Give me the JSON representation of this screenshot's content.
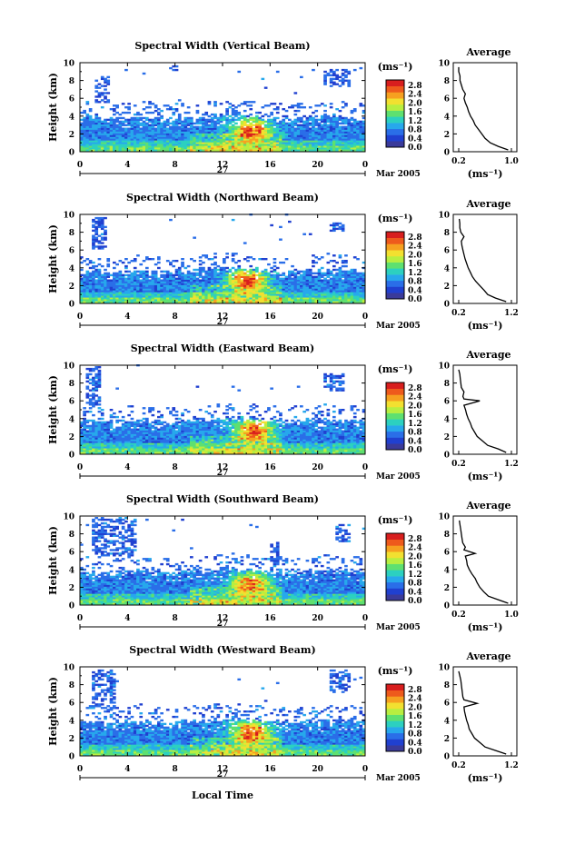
{
  "figure": {
    "date_label": "Mar 2005",
    "day_label": "27",
    "xlabel_bottom": "Local Time",
    "colorbar_unit": "(ms⁻¹)",
    "average_title": "Average",
    "average_xlabel": "(ms⁻¹)"
  },
  "colorbar": {
    "ticks": [
      "0.0",
      "0.4",
      "0.8",
      "1.2",
      "1.6",
      "2.0",
      "2.4",
      "2.8"
    ],
    "colors": [
      "#3a3a9a",
      "#2040d0",
      "#2a6ee8",
      "#27a8ec",
      "#2cd0c0",
      "#5ee070",
      "#b8ee40",
      "#f2e030",
      "#f6a020",
      "#ee5a1c",
      "#d81e1e"
    ]
  },
  "chart_data": [
    {
      "type": "heatmap",
      "title": "Spectral Width (Vertical Beam)",
      "ylabel": "Height (km)",
      "x_ticks": [
        "0",
        "4",
        "8",
        "12",
        "16",
        "20",
        "0"
      ],
      "y_ticks": [
        "0",
        "2",
        "4",
        "6",
        "8",
        "10"
      ],
      "xlim": [
        0,
        24
      ],
      "ylim": [
        0,
        10
      ],
      "clim": [
        0.0,
        2.8
      ],
      "cloud_top_km": [
        3.8,
        3.7,
        3.5,
        3.6,
        3.9,
        3.8,
        3.6,
        3.5,
        3.7,
        3.6,
        3.8,
        4.0,
        4.1,
        3.9,
        3.8,
        3.7,
        3.6,
        3.5,
        3.6,
        3.7,
        3.8,
        3.9,
        3.8,
        3.7
      ],
      "upper_features": [
        {
          "t0": 1.2,
          "t1": 2.3,
          "h0": 5.5,
          "h1": 8.5
        },
        {
          "t0": 20.5,
          "t1": 22.5,
          "h0": 7.3,
          "h1": 9.2
        },
        {
          "t0": 7.5,
          "t1": 8.0,
          "h0": 9.0,
          "h1": 9.6
        }
      ],
      "peak": {
        "t": 14.3,
        "h": 2.4,
        "value": 2.6
      },
      "average_profile": {
        "xlim": [
          0.2,
          1.0
        ],
        "x_ticks": [
          "0.2",
          "1.0"
        ],
        "y_ticks": [
          "0",
          "2",
          "4",
          "6",
          "8",
          "10"
        ],
        "height_km": [
          0.2,
          0.6,
          1.0,
          1.5,
          2.0,
          2.5,
          3.0,
          3.5,
          4.0,
          4.5,
          5.0,
          5.5,
          6.0,
          6.5,
          7.0,
          7.5,
          8.0,
          8.5,
          9.0,
          9.5
        ],
        "value": [
          0.95,
          0.8,
          0.68,
          0.6,
          0.55,
          0.5,
          0.45,
          0.42,
          0.38,
          0.35,
          0.33,
          0.3,
          0.28,
          0.3,
          0.26,
          0.24,
          0.22,
          0.22,
          0.2,
          0.2
        ]
      }
    },
    {
      "type": "heatmap",
      "title": "Spectral Width (Northward Beam)",
      "ylabel": "Height (km)",
      "x_ticks": [
        "0",
        "4",
        "8",
        "12",
        "16",
        "20",
        "0"
      ],
      "y_ticks": [
        "0",
        "2",
        "4",
        "6",
        "8",
        "10"
      ],
      "xlim": [
        0,
        24
      ],
      "ylim": [
        0,
        10
      ],
      "clim": [
        0.0,
        2.8
      ],
      "cloud_top_km": [
        3.6,
        3.5,
        3.3,
        3.4,
        3.6,
        3.5,
        3.4,
        3.3,
        3.5,
        3.6,
        3.7,
        3.8,
        3.9,
        3.8,
        3.7,
        3.6,
        3.5,
        3.4,
        3.5,
        3.6,
        3.7,
        3.7,
        3.6,
        3.5
      ],
      "upper_features": [
        {
          "t0": 1.0,
          "t1": 2.0,
          "h0": 6.0,
          "h1": 9.5
        },
        {
          "t0": 21.0,
          "t1": 22.0,
          "h0": 8.0,
          "h1": 9.0
        }
      ],
      "peak": {
        "t": 14.0,
        "h": 2.5,
        "value": 2.7
      },
      "average_profile": {
        "xlim": [
          0.2,
          1.2
        ],
        "x_ticks": [
          "0.2",
          "1.2"
        ],
        "y_ticks": [
          "0",
          "2",
          "4",
          "6",
          "8",
          "10"
        ],
        "height_km": [
          0.2,
          0.6,
          1.0,
          1.5,
          2.0,
          2.5,
          3.0,
          3.5,
          4.0,
          4.5,
          5.0,
          5.5,
          6.0,
          6.5,
          7.0,
          7.5,
          8.0,
          8.5,
          9.0,
          9.5
        ],
        "value": [
          1.1,
          0.9,
          0.75,
          0.68,
          0.6,
          0.52,
          0.46,
          0.42,
          0.38,
          0.35,
          0.32,
          0.3,
          0.28,
          0.26,
          0.25,
          0.3,
          0.24,
          0.22,
          0.22,
          0.21
        ]
      }
    },
    {
      "type": "heatmap",
      "title": "Spectral Width (Eastward Beam)",
      "ylabel": "Height (km)",
      "x_ticks": [
        "0",
        "4",
        "8",
        "12",
        "16",
        "20",
        "0"
      ],
      "y_ticks": [
        "0",
        "2",
        "4",
        "6",
        "8",
        "10"
      ],
      "xlim": [
        0,
        24
      ],
      "ylim": [
        0,
        10
      ],
      "clim": [
        0.0,
        2.8
      ],
      "cloud_top_km": [
        3.7,
        3.6,
        3.4,
        3.5,
        3.7,
        3.6,
        3.5,
        3.4,
        3.6,
        3.7,
        3.8,
        3.9,
        4.0,
        3.9,
        3.8,
        3.7,
        3.6,
        3.5,
        3.6,
        3.7,
        3.8,
        3.8,
        3.7,
        3.6
      ],
      "upper_features": [
        {
          "t0": 0.5,
          "t1": 1.5,
          "h0": 5.5,
          "h1": 9.8
        },
        {
          "t0": 20.5,
          "t1": 22.2,
          "h0": 7.0,
          "h1": 9.0
        }
      ],
      "peak": {
        "t": 14.5,
        "h": 2.6,
        "value": 2.7
      },
      "average_profile": {
        "xlim": [
          0.2,
          1.2
        ],
        "x_ticks": [
          "0.2",
          "1.2"
        ],
        "y_ticks": [
          "0",
          "2",
          "4",
          "6",
          "8",
          "10"
        ],
        "height_km": [
          0.2,
          0.6,
          1.0,
          1.5,
          2.0,
          2.5,
          3.0,
          3.5,
          4.0,
          4.5,
          5.0,
          5.5,
          6.0,
          6.2,
          6.5,
          7.0,
          7.5,
          8.0,
          8.5,
          9.0,
          9.5
        ],
        "value": [
          1.1,
          0.95,
          0.75,
          0.65,
          0.55,
          0.5,
          0.45,
          0.42,
          0.38,
          0.35,
          0.33,
          0.3,
          0.6,
          0.3,
          0.28,
          0.3,
          0.25,
          0.24,
          0.23,
          0.22,
          0.2
        ]
      }
    },
    {
      "type": "heatmap",
      "title": "Spectral Width (Southward Beam)",
      "ylabel": "Height (km)",
      "x_ticks": [
        "0",
        "4",
        "8",
        "12",
        "16",
        "20",
        "0"
      ],
      "y_ticks": [
        "0",
        "2",
        "4",
        "6",
        "8",
        "10"
      ],
      "xlim": [
        0,
        24
      ],
      "ylim": [
        0,
        10
      ],
      "clim": [
        0.0,
        2.8
      ],
      "cloud_top_km": [
        3.7,
        3.6,
        3.4,
        3.5,
        3.6,
        3.7,
        3.5,
        3.4,
        3.6,
        3.7,
        3.8,
        3.9,
        4.0,
        3.9,
        3.8,
        3.7,
        3.6,
        3.5,
        3.6,
        3.7,
        3.8,
        3.8,
        3.7,
        3.6
      ],
      "upper_features": [
        {
          "t0": 0.8,
          "t1": 4.5,
          "h0": 5.5,
          "h1": 9.8
        },
        {
          "t0": 21.5,
          "t1": 22.5,
          "h0": 6.8,
          "h1": 9.0
        },
        {
          "t0": 16.0,
          "t1": 16.6,
          "h0": 4.0,
          "h1": 7.0
        }
      ],
      "peak": {
        "t": 14.2,
        "h": 2.3,
        "value": 2.5
      },
      "average_profile": {
        "xlim": [
          0.2,
          1.0
        ],
        "x_ticks": [
          "0.2",
          "1.0"
        ],
        "y_ticks": [
          "0",
          "2",
          "4",
          "6",
          "8",
          "10"
        ],
        "height_km": [
          0.2,
          0.6,
          1.0,
          1.5,
          2.0,
          2.5,
          3.0,
          3.5,
          4.0,
          4.5,
          5.0,
          5.5,
          5.8,
          6.2,
          6.5,
          7.0,
          7.5,
          8.0,
          8.5,
          9.0,
          9.5
        ],
        "value": [
          0.95,
          0.8,
          0.65,
          0.58,
          0.52,
          0.48,
          0.45,
          0.4,
          0.36,
          0.33,
          0.32,
          0.3,
          0.45,
          0.28,
          0.3,
          0.26,
          0.25,
          0.24,
          0.23,
          0.22,
          0.21
        ]
      }
    },
    {
      "type": "heatmap",
      "title": "Spectral Width (Westward Beam)",
      "ylabel": "Height (km)",
      "x_ticks": [
        "0",
        "4",
        "8",
        "12",
        "16",
        "20",
        "0"
      ],
      "y_ticks": [
        "0",
        "2",
        "4",
        "6",
        "8",
        "10"
      ],
      "xlim": [
        0,
        24
      ],
      "ylim": [
        0,
        10
      ],
      "clim": [
        0.0,
        2.8
      ],
      "cloud_top_km": [
        3.8,
        3.7,
        3.5,
        3.6,
        3.7,
        3.8,
        3.6,
        3.5,
        3.7,
        3.8,
        3.9,
        4.0,
        4.1,
        4.0,
        3.9,
        3.8,
        3.7,
        3.6,
        3.7,
        3.8,
        3.9,
        3.9,
        3.8,
        3.7
      ],
      "upper_features": [
        {
          "t0": 0.8,
          "t1": 2.8,
          "h0": 5.0,
          "h1": 9.6
        },
        {
          "t0": 21.0,
          "t1": 22.5,
          "h0": 7.0,
          "h1": 9.5
        }
      ],
      "peak": {
        "t": 14.3,
        "h": 2.6,
        "value": 2.7
      },
      "average_profile": {
        "xlim": [
          0.2,
          1.2
        ],
        "x_ticks": [
          "0.2",
          "1.2"
        ],
        "y_ticks": [
          "0",
          "2",
          "4",
          "6",
          "8",
          "10"
        ],
        "height_km": [
          0.2,
          0.6,
          1.0,
          1.5,
          2.0,
          2.5,
          3.0,
          3.5,
          4.0,
          4.5,
          5.0,
          5.5,
          5.9,
          6.3,
          6.6,
          7.0,
          7.5,
          8.0,
          8.5,
          9.0,
          9.5
        ],
        "value": [
          1.1,
          0.9,
          0.7,
          0.6,
          0.5,
          0.45,
          0.4,
          0.38,
          0.35,
          0.33,
          0.31,
          0.3,
          0.55,
          0.3,
          0.28,
          0.27,
          0.26,
          0.25,
          0.24,
          0.22,
          0.2
        ]
      }
    }
  ]
}
